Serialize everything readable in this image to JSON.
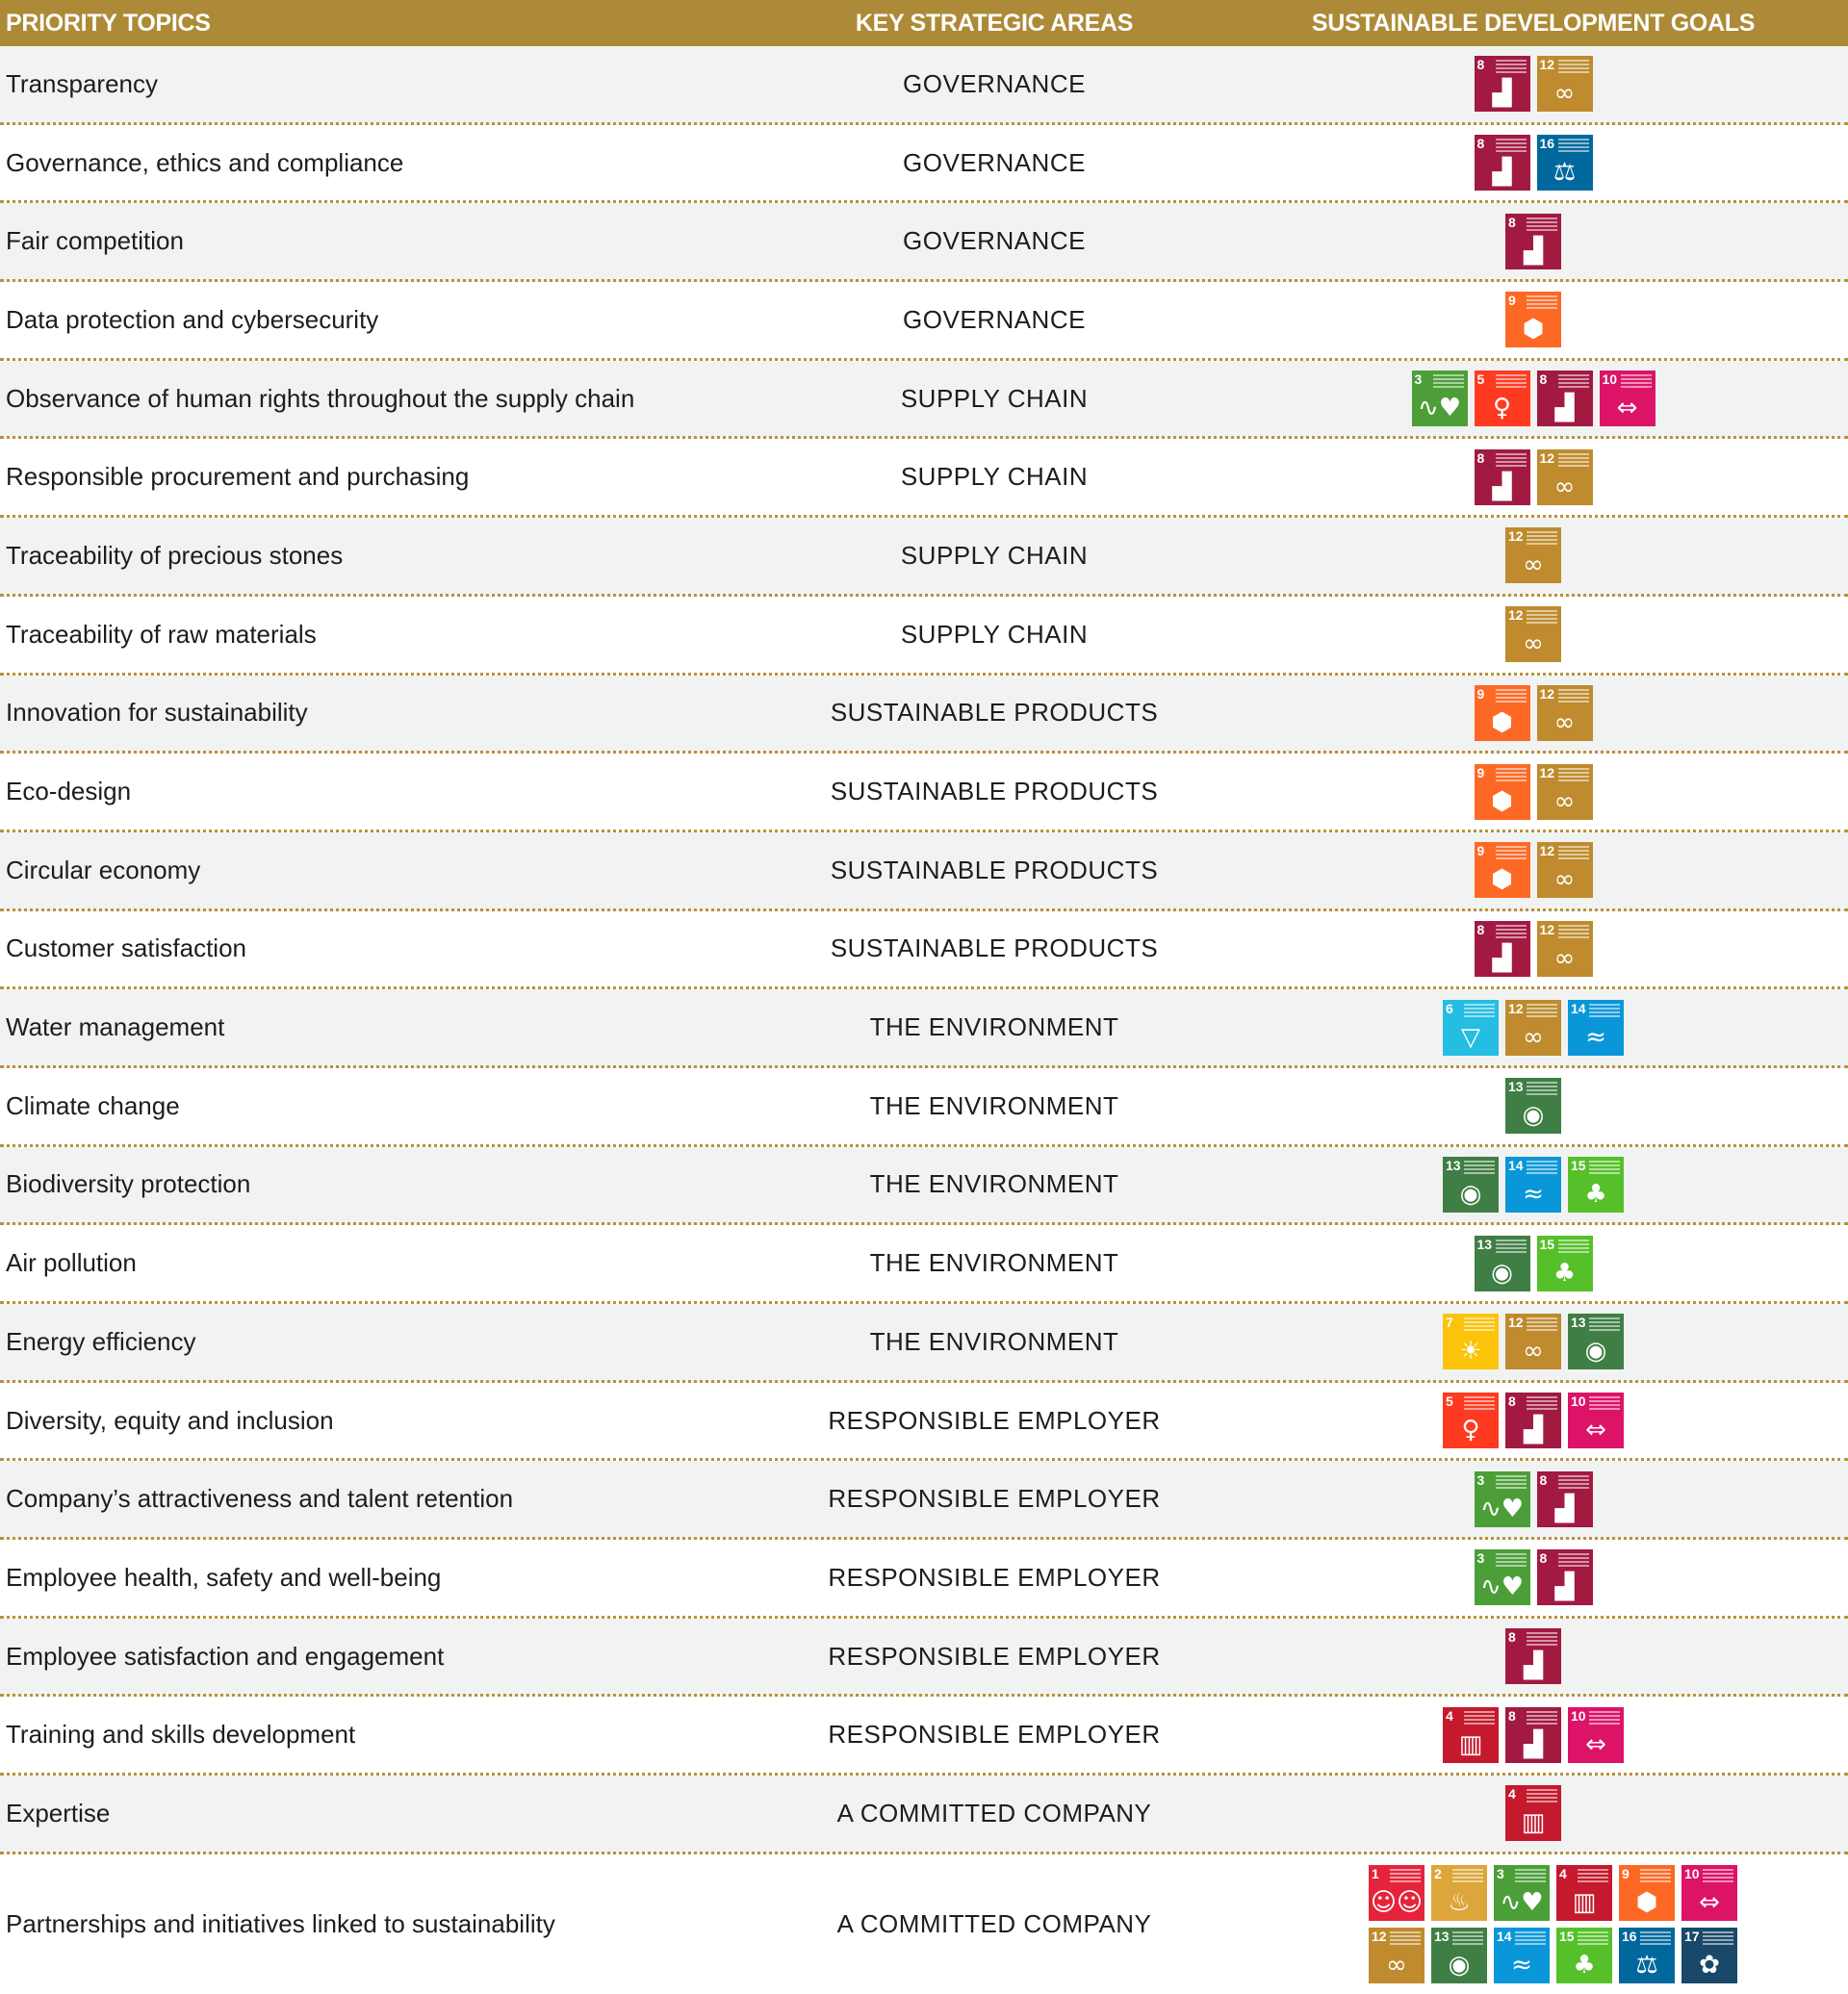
{
  "header": {
    "topics": "PRIORITY TOPICS",
    "areas": "KEY STRATEGIC AREAS",
    "goals": "SUSTAINABLE DEVELOPMENT GOALS"
  },
  "sdg_colors": {
    "1": "#e5243b",
    "2": "#dda63a",
    "3": "#4c9f38",
    "4": "#c5192d",
    "5": "#ff3a21",
    "6": "#26bde2",
    "7": "#fcc30b",
    "8": "#a21942",
    "9": "#fd6925",
    "10": "#dd1367",
    "12": "#bf8b2e",
    "13": "#3f7e44",
    "14": "#0a97d9",
    "15": "#56c02b",
    "16": "#00689d",
    "17": "#19486a"
  },
  "sdg_icons": {
    "1": "family-icon",
    "2": "bowl-icon",
    "3": "heartbeat-icon",
    "4": "book-icon",
    "5": "gender-icon",
    "6": "water-drop-icon",
    "7": "sun-icon",
    "8": "growth-chart-icon",
    "9": "cubes-icon",
    "10": "arrows-icon",
    "12": "infinity-icon",
    "13": "eye-globe-icon",
    "14": "fish-icon",
    "15": "tree-icon",
    "16": "dove-icon",
    "17": "flower-rings-icon"
  },
  "rows": [
    {
      "topic": "Transparency",
      "area": "GOVERNANCE",
      "goals": [
        "8",
        "12"
      ]
    },
    {
      "topic": "Governance, ethics and compliance",
      "area": "GOVERNANCE",
      "goals": [
        "8",
        "16"
      ]
    },
    {
      "topic": "Fair competition",
      "area": "GOVERNANCE",
      "goals": [
        "8"
      ]
    },
    {
      "topic": "Data protection and cybersecurity",
      "area": "GOVERNANCE",
      "goals": [
        "9"
      ]
    },
    {
      "topic": "Observance of human rights throughout the supply chain",
      "area": "SUPPLY CHAIN",
      "goals": [
        "3",
        "5",
        "8",
        "10"
      ]
    },
    {
      "topic": "Responsible procurement and purchasing",
      "area": "SUPPLY CHAIN",
      "goals": [
        "8",
        "12"
      ]
    },
    {
      "topic": "Traceability of precious stones",
      "area": "SUPPLY CHAIN",
      "goals": [
        "12"
      ]
    },
    {
      "topic": "Traceability of raw materials",
      "area": "SUPPLY CHAIN",
      "goals": [
        "12"
      ]
    },
    {
      "topic": "Innovation for sustainability",
      "area": "SUSTAINABLE PRODUCTS",
      "goals": [
        "9",
        "12"
      ]
    },
    {
      "topic": "Eco-design",
      "area": "SUSTAINABLE PRODUCTS",
      "goals": [
        "9",
        "12"
      ]
    },
    {
      "topic": "Circular economy",
      "area": "SUSTAINABLE PRODUCTS",
      "goals": [
        "9",
        "12"
      ]
    },
    {
      "topic": "Customer satisfaction",
      "area": "SUSTAINABLE PRODUCTS",
      "goals": [
        "8",
        "12"
      ]
    },
    {
      "topic": "Water management",
      "area": "THE ENVIRONMENT",
      "goals": [
        "6",
        "12",
        "14"
      ]
    },
    {
      "topic": "Climate change",
      "area": "THE ENVIRONMENT",
      "goals": [
        "13"
      ]
    },
    {
      "topic": "Biodiversity protection",
      "area": "THE ENVIRONMENT",
      "goals": [
        "13",
        "14",
        "15"
      ]
    },
    {
      "topic": "Air pollution",
      "area": "THE ENVIRONMENT",
      "goals": [
        "13",
        "15"
      ]
    },
    {
      "topic": "Energy efficiency",
      "area": "THE ENVIRONMENT",
      "goals": [
        "7",
        "12",
        "13"
      ]
    },
    {
      "topic": "Diversity, equity and inclusion",
      "area": "RESPONSIBLE EMPLOYER",
      "goals": [
        "5",
        "8",
        "10"
      ]
    },
    {
      "topic": "Company’s attractiveness and talent retention",
      "area": "RESPONSIBLE EMPLOYER",
      "goals": [
        "3",
        "8"
      ]
    },
    {
      "topic": "Employee health, safety and well-being",
      "area": "RESPONSIBLE EMPLOYER",
      "goals": [
        "3",
        "8"
      ]
    },
    {
      "topic": "Employee satisfaction and engagement",
      "area": "RESPONSIBLE EMPLOYER",
      "goals": [
        "8"
      ]
    },
    {
      "topic": "Training and skills development",
      "area": "RESPONSIBLE EMPLOYER",
      "goals": [
        "4",
        "8",
        "10"
      ]
    },
    {
      "topic": "Expertise",
      "area": "A COMMITTED COMPANY",
      "goals": [
        "4"
      ]
    },
    {
      "topic": "Partnerships and initiatives linked to sustainability",
      "area": "A COMMITTED COMPANY",
      "goals": [
        "1",
        "2",
        "3",
        "4",
        "9",
        "10",
        "12",
        "13",
        "14",
        "15",
        "16",
        "17"
      ]
    }
  ]
}
